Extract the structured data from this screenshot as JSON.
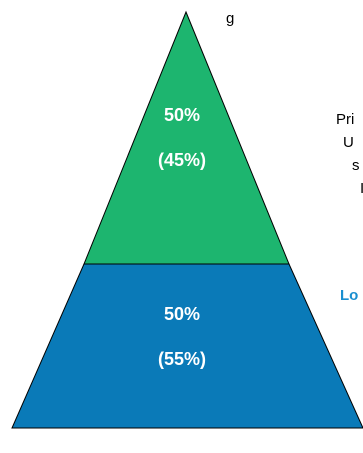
{
  "title_fragment": "g",
  "pyramid": {
    "upper": {
      "value": "50%",
      "sub_value": "(45%)",
      "color": "#1db56f"
    },
    "lower": {
      "value": "50%",
      "sub_value": "(55%)",
      "color": "#0a7ab8"
    },
    "outline_color": "#000000"
  },
  "side_notes": {
    "line1": "Pri",
    "line2": "U",
    "line3": "s",
    "line4": "I",
    "lower_label": "Lo",
    "lower_label_color": "#1a8fd0"
  }
}
